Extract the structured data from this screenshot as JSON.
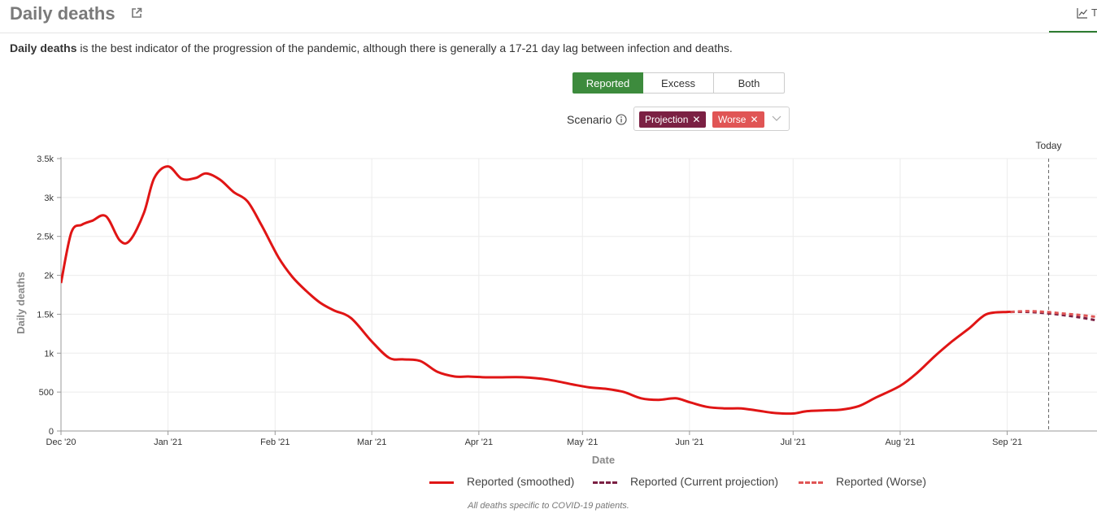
{
  "header": {
    "title": "Daily deaths",
    "tab_label": "T"
  },
  "description": {
    "lead": "Daily deaths",
    "rest": " is the best indicator of the progression of the pandemic, although there is generally a 17-21 day lag between infection and deaths."
  },
  "view_toggle": {
    "options": [
      "Reported",
      "Excess",
      "Both"
    ],
    "selected": "Reported"
  },
  "scenario": {
    "label": "Scenario",
    "chips": [
      {
        "label": "Projection",
        "color": "#7b2043"
      },
      {
        "label": "Worse",
        "color": "#e05555"
      }
    ]
  },
  "colors": {
    "reported": "#e01515",
    "projection": "#7b2043",
    "worse": "#e05555",
    "accent": "#3d8b3d"
  },
  "chart_data": {
    "type": "line",
    "xlabel": "Date",
    "ylabel": "Daily deaths",
    "ylim": [
      0,
      3500
    ],
    "yticks": [
      0,
      500,
      1000,
      1500,
      2000,
      2500,
      3000,
      3500
    ],
    "ytick_labels": [
      "0",
      "500",
      "1k",
      "1.5k",
      "2k",
      "2.5k",
      "3k",
      "3.5k"
    ],
    "xlim": [
      "2020-12-01",
      "2021-09-27"
    ],
    "xticks": [
      "2020-12-01",
      "2021-01-01",
      "2021-02-01",
      "2021-03-01",
      "2021-04-01",
      "2021-05-01",
      "2021-06-01",
      "2021-07-01",
      "2021-08-01",
      "2021-09-01"
    ],
    "xtick_labels": [
      "Dec '20",
      "Jan '21",
      "Feb '21",
      "Mar '21",
      "Apr '21",
      "May '21",
      "Jun '21",
      "Jul '21",
      "Aug '21",
      "Sep '21"
    ],
    "grid": true,
    "legend_position": "bottom",
    "today": {
      "date": "2021-09-13",
      "label": "Today"
    },
    "series": [
      {
        "name": "Reported (smoothed)",
        "style": "solid",
        "x": [
          "2020-12-01",
          "2020-12-04",
          "2020-12-07",
          "2020-12-10",
          "2020-12-14",
          "2020-12-18",
          "2020-12-21",
          "2020-12-25",
          "2020-12-28",
          "2021-01-01",
          "2021-01-05",
          "2021-01-09",
          "2021-01-12",
          "2021-01-16",
          "2021-01-20",
          "2021-01-24",
          "2021-01-28",
          "2021-02-02",
          "2021-02-06",
          "2021-02-10",
          "2021-02-14",
          "2021-02-18",
          "2021-02-23",
          "2021-03-01",
          "2021-03-06",
          "2021-03-10",
          "2021-03-15",
          "2021-03-20",
          "2021-03-25",
          "2021-03-29",
          "2021-04-03",
          "2021-04-07",
          "2021-04-14",
          "2021-04-21",
          "2021-04-28",
          "2021-05-03",
          "2021-05-08",
          "2021-05-13",
          "2021-05-18",
          "2021-05-23",
          "2021-05-28",
          "2021-06-01",
          "2021-06-06",
          "2021-06-11",
          "2021-06-16",
          "2021-06-21",
          "2021-06-26",
          "2021-07-01",
          "2021-07-05",
          "2021-07-10",
          "2021-07-15",
          "2021-07-20",
          "2021-07-25",
          "2021-08-01",
          "2021-08-06",
          "2021-08-11",
          "2021-08-16",
          "2021-08-21",
          "2021-08-26",
          "2021-09-01",
          "2021-09-02"
        ],
        "y": [
          1900,
          2550,
          2650,
          2700,
          2760,
          2450,
          2450,
          2800,
          3250,
          3400,
          3240,
          3250,
          3310,
          3230,
          3070,
          2950,
          2650,
          2230,
          1980,
          1800,
          1650,
          1550,
          1450,
          1150,
          940,
          920,
          900,
          760,
          700,
          700,
          690,
          690,
          690,
          660,
          600,
          560,
          540,
          500,
          420,
          400,
          420,
          370,
          310,
          290,
          290,
          260,
          230,
          225,
          255,
          265,
          275,
          320,
          430,
          580,
          750,
          960,
          1150,
          1320,
          1500,
          1530,
          1530
        ]
      },
      {
        "name": "Reported (Current projection)",
        "style": "dashed",
        "x": [
          "2021-09-02",
          "2021-09-07",
          "2021-09-12",
          "2021-09-17",
          "2021-09-22",
          "2021-09-27"
        ],
        "y": [
          1530,
          1530,
          1515,
          1490,
          1460,
          1420
        ]
      },
      {
        "name": "Reported (Worse)",
        "style": "dashed",
        "x": [
          "2021-09-02",
          "2021-09-07",
          "2021-09-12",
          "2021-09-17",
          "2021-09-22",
          "2021-09-27"
        ],
        "y": [
          1530,
          1540,
          1530,
          1510,
          1490,
          1465
        ]
      }
    ]
  },
  "footnote": "All deaths specific to COVID-19 patients."
}
